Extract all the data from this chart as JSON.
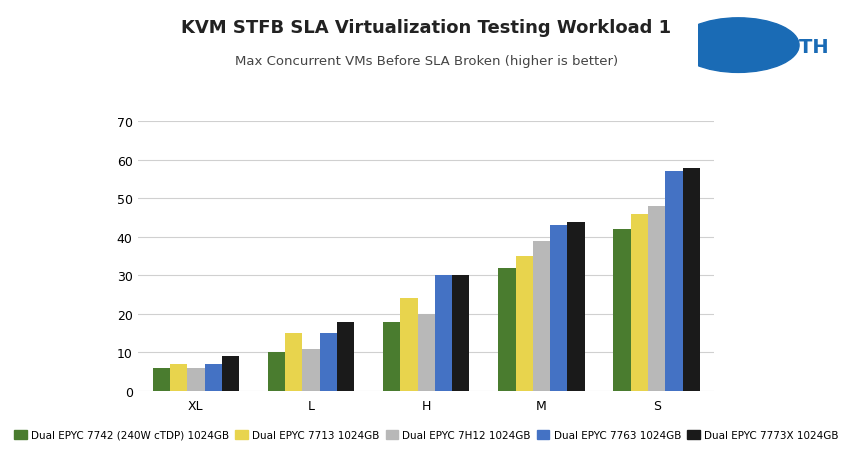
{
  "title": "KVM STFB SLA Virtualization Testing Workload 1",
  "subtitle": "Max Concurrent VMs Before SLA Broken (higher is better)",
  "categories": [
    "XL",
    "L",
    "H",
    "M",
    "S"
  ],
  "series": [
    {
      "label": "Dual EPYC 7742 (240W cTDP) 1024GB",
      "color": "#4a7c2f",
      "values": [
        6,
        10,
        18,
        32,
        42
      ]
    },
    {
      "label": "Dual EPYC 7713 1024GB",
      "color": "#e8d44d",
      "values": [
        7,
        15,
        24,
        35,
        46
      ]
    },
    {
      "label": "Dual EPYC 7H12 1024GB",
      "color": "#b8b8b8",
      "values": [
        6,
        11,
        20,
        39,
        48
      ]
    },
    {
      "label": "Dual EPYC 7763 1024GB",
      "color": "#4472c4",
      "values": [
        7,
        15,
        30,
        43,
        57
      ]
    },
    {
      "label": "Dual EPYC 7773X 1024GB",
      "color": "#1a1a1a",
      "values": [
        9,
        18,
        30,
        44,
        58
      ]
    }
  ],
  "ylim": [
    0,
    70
  ],
  "yticks": [
    0,
    10,
    20,
    30,
    40,
    50,
    60,
    70
  ],
  "background_color": "#ffffff",
  "grid_color": "#d0d0d0",
  "title_fontsize": 13,
  "subtitle_fontsize": 9.5,
  "legend_fontsize": 7.5,
  "tick_fontsize": 9,
  "bar_width": 0.15,
  "logo_circle_color": "#1a6bb5",
  "logo_text_color": "#1a6bb5",
  "logo_text": "STH"
}
